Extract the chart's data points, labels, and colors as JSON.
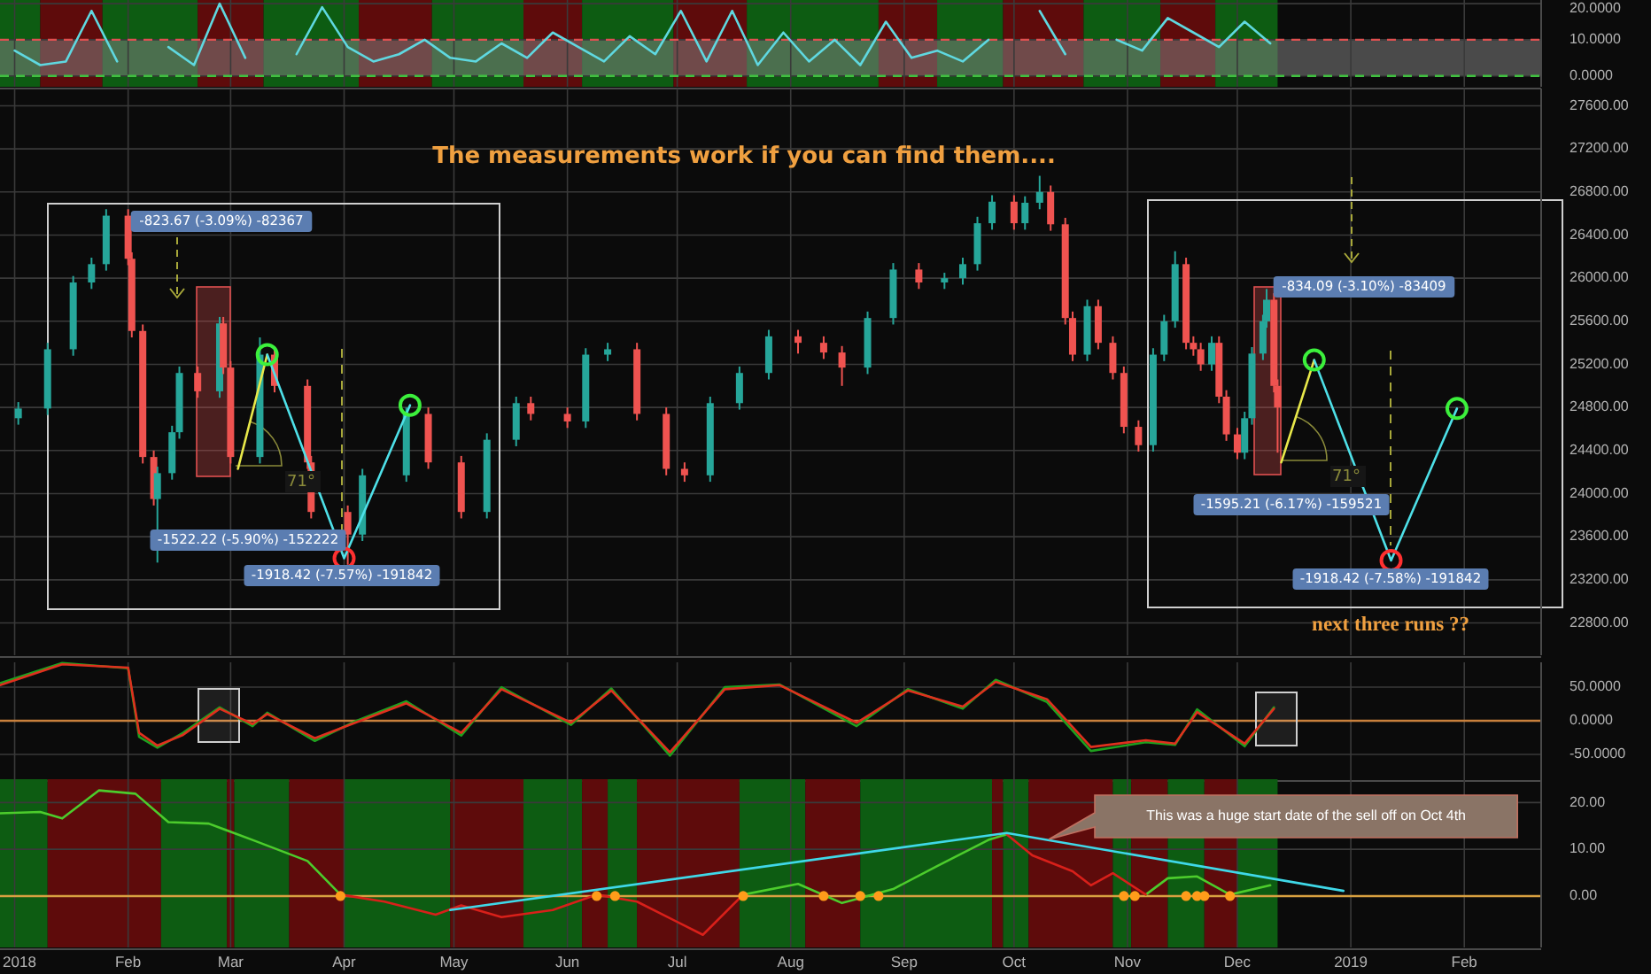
{
  "chart_data": [
    {
      "type": "line",
      "xlim": [
        "2017-12-28",
        "2019-02-22"
      ],
      "ylim": [
        -3,
        21
      ],
      "tick_labels": "y",
      "grid": true,
      "xticks": [
        {
          "value": "2018-01-01",
          "label": null
        },
        {
          "value": "2018-02-01",
          "label": null
        },
        {
          "value": "2018-03-01",
          "label": null
        },
        {
          "value": "2018-04-01",
          "label": null
        },
        {
          "value": "2018-05-01",
          "label": null
        },
        {
          "value": "2018-06-01",
          "label": null
        },
        {
          "value": "2018-07-01",
          "label": null
        },
        {
          "value": "2018-08-01",
          "label": null
        },
        {
          "value": "2018-09-01",
          "label": null
        },
        {
          "value": "2018-10-01",
          "label": null
        },
        {
          "value": "2018-11-01",
          "label": null
        },
        {
          "value": "2018-12-01",
          "label": null
        },
        {
          "value": "2019-01-01",
          "label": null
        },
        {
          "value": "2019-02-01",
          "label": null
        }
      ],
      "yticks": [
        {
          "value": 0,
          "label": "0.0000"
        },
        {
          "value": 10,
          "label": "10.0000"
        },
        {
          "value": 20,
          "label": "20.0000"
        }
      ],
      "bands": [
        {
          "axis": "x",
          "from": "2017-12-28",
          "to": "2018-01-08",
          "color": "#0d5c12"
        },
        {
          "axis": "x",
          "from": "2018-01-08",
          "to": "2018-01-25",
          "color": "#5e0b0b"
        },
        {
          "axis": "x",
          "from": "2018-01-25",
          "to": "2018-02-20",
          "color": "#0d5c12"
        },
        {
          "axis": "x",
          "from": "2018-02-20",
          "to": "2018-03-10",
          "color": "#5e0b0b"
        },
        {
          "axis": "x",
          "from": "2018-03-10",
          "to": "2018-04-05",
          "color": "#0d5c12"
        },
        {
          "axis": "x",
          "from": "2018-04-05",
          "to": "2018-04-25",
          "color": "#5e0b0b"
        },
        {
          "axis": "x",
          "from": "2018-04-25",
          "to": "2018-05-20",
          "color": "#0d5c12"
        },
        {
          "axis": "x",
          "from": "2018-05-20",
          "to": "2018-06-05",
          "color": "#5e0b0b"
        },
        {
          "axis": "x",
          "from": "2018-06-05",
          "to": "2018-06-30",
          "color": "#0d5c12"
        },
        {
          "axis": "x",
          "from": "2018-06-30",
          "to": "2018-07-20",
          "color": "#5e0b0b"
        },
        {
          "axis": "x",
          "from": "2018-07-20",
          "to": "2018-08-25",
          "color": "#0d5c12"
        },
        {
          "axis": "x",
          "from": "2018-08-25",
          "to": "2018-09-10",
          "color": "#5e0b0b"
        },
        {
          "axis": "x",
          "from": "2018-09-10",
          "to": "2018-09-28",
          "color": "#0d5c12"
        },
        {
          "axis": "x",
          "from": "2018-09-28",
          "to": "2018-10-20",
          "color": "#5e0b0b"
        },
        {
          "axis": "x",
          "from": "2018-10-20",
          "to": "2018-11-10",
          "color": "#0d5c12"
        },
        {
          "axis": "x",
          "from": "2018-11-10",
          "to": "2018-11-25",
          "color": "#5e0b0b"
        },
        {
          "axis": "x",
          "from": "2018-11-25",
          "to": "2018-12-12",
          "color": "#0d5c12"
        },
        {
          "axis": "y",
          "from": 0,
          "to": 10,
          "color": "#808080"
        }
      ],
      "ref_lines": [
        {
          "axis": "y",
          "value": 10,
          "color": "#e05050",
          "line_style": "dashed"
        },
        {
          "axis": "y",
          "value": 0,
          "color": "#40c040",
          "line_style": "dashed"
        }
      ],
      "series": [
        {
          "color": "#5fd8e0",
          "x": [
            "2018-01-01",
            "2018-01-08",
            "2018-01-15",
            "2018-01-22",
            "2018-01-29",
            "2018-02-05",
            "2018-02-12",
            "2018-02-19",
            "2018-02-26",
            "2018-03-05",
            "2018-03-12",
            "2018-03-19",
            "2018-03-26",
            "2018-04-02",
            "2018-04-09",
            "2018-04-16",
            "2018-04-23",
            "2018-04-30",
            "2018-05-07",
            "2018-05-14",
            "2018-05-21",
            "2018-05-28",
            "2018-06-04",
            "2018-06-11",
            "2018-06-18",
            "2018-06-25",
            "2018-07-02",
            "2018-07-09",
            "2018-07-16",
            "2018-07-23",
            "2018-07-30",
            "2018-08-06",
            "2018-08-13",
            "2018-08-20",
            "2018-08-27",
            "2018-09-03",
            "2018-09-10",
            "2018-09-17",
            "2018-09-24",
            "2018-10-01",
            "2018-10-08",
            "2018-10-15",
            "2018-10-22",
            "2018-10-29",
            "2018-11-05",
            "2018-11-12",
            "2018-11-19",
            "2018-11-26",
            "2018-12-03",
            "2018-12-10"
          ],
          "values": [
            7,
            3,
            4,
            18,
            4,
            null,
            8,
            3,
            20,
            5,
            null,
            6,
            19,
            8,
            4,
            6,
            10,
            5,
            4,
            9,
            5,
            12,
            8,
            4,
            11,
            6,
            18,
            4,
            18,
            3,
            12,
            4,
            10,
            3,
            15,
            5,
            7,
            4,
            10,
            null,
            18,
            6,
            null,
            10,
            7,
            16,
            12,
            8,
            15,
            9
          ]
        }
      ]
    },
    {
      "type": "candlestick",
      "title": "The measurements work if you can find them....",
      "xlim": [
        "2017-12-28",
        "2019-02-22"
      ],
      "ylim": [
        22500,
        27760
      ],
      "tick_labels": "y",
      "grid": true,
      "xticks": [
        {
          "value": "2018-01-01",
          "label": null
        },
        {
          "value": "2018-02-01",
          "label": null
        },
        {
          "value": "2018-03-01",
          "label": null
        },
        {
          "value": "2018-04-01",
          "label": null
        },
        {
          "value": "2018-05-01",
          "label": null
        },
        {
          "value": "2018-06-01",
          "label": null
        },
        {
          "value": "2018-07-01",
          "label": null
        },
        {
          "value": "2018-08-01",
          "label": null
        },
        {
          "value": "2018-09-01",
          "label": null
        },
        {
          "value": "2018-10-01",
          "label": null
        },
        {
          "value": "2018-11-01",
          "label": null
        },
        {
          "value": "2018-12-01",
          "label": null
        },
        {
          "value": "2019-01-01",
          "label": null
        },
        {
          "value": "2019-02-01",
          "label": null
        }
      ],
      "yticks": [
        {
          "value": 22800,
          "label": "22800.00"
        },
        {
          "value": 23200,
          "label": "23200.00"
        },
        {
          "value": 23600,
          "label": "23600.00"
        },
        {
          "value": 24000,
          "label": "24000.00"
        },
        {
          "value": 24400,
          "label": "24400.00"
        },
        {
          "value": 24800,
          "label": "24800.00"
        },
        {
          "value": 25200,
          "label": "25200.00"
        },
        {
          "value": 25600,
          "label": "25600.00"
        },
        {
          "value": 26000,
          "label": "26000.00"
        },
        {
          "value": 26400,
          "label": "26400.00"
        },
        {
          "value": 26800,
          "label": "26800.00"
        },
        {
          "value": 27200,
          "label": "27200.00"
        },
        {
          "value": 27600,
          "label": "27600.00"
        }
      ],
      "x": [
        "2018-01-02",
        "2018-01-10",
        "2018-01-17",
        "2018-01-22",
        "2018-01-26",
        "2018-02-01",
        "2018-02-02",
        "2018-02-05",
        "2018-02-08",
        "2018-02-09",
        "2018-02-13",
        "2018-02-15",
        "2018-02-20",
        "2018-02-26",
        "2018-02-27",
        "2018-03-01",
        "2018-03-09",
        "2018-03-13",
        "2018-03-22",
        "2018-03-23",
        "2018-04-02",
        "2018-04-06",
        "2018-04-18",
        "2018-04-24",
        "2018-05-03",
        "2018-05-10",
        "2018-05-18",
        "2018-05-22",
        "2018-06-01",
        "2018-06-06",
        "2018-06-12",
        "2018-06-20",
        "2018-06-28",
        "2018-07-03",
        "2018-07-10",
        "2018-07-18",
        "2018-07-26",
        "2018-08-03",
        "2018-08-10",
        "2018-08-15",
        "2018-08-22",
        "2018-08-29",
        "2018-09-05",
        "2018-09-12",
        "2018-09-17",
        "2018-09-21",
        "2018-09-25",
        "2018-10-01",
        "2018-10-04",
        "2018-10-08",
        "2018-10-11",
        "2018-10-15",
        "2018-10-17",
        "2018-10-21",
        "2018-10-24",
        "2018-10-28",
        "2018-10-31",
        "2018-11-04",
        "2018-11-08",
        "2018-11-11",
        "2018-11-14",
        "2018-11-17",
        "2018-11-19",
        "2018-11-21",
        "2018-11-24",
        "2018-11-26",
        "2018-11-28",
        "2018-12-01",
        "2018-12-03",
        "2018-12-05",
        "2018-12-08",
        "2018-12-09",
        "2018-12-11",
        "2018-12-12"
      ],
      "ohlc": [
        [
          24700,
          24850,
          24640,
          24790
        ],
        [
          24790,
          25400,
          24730,
          25340
        ],
        [
          25340,
          26020,
          25280,
          25960
        ],
        [
          25960,
          26190,
          25900,
          26130
        ],
        [
          26130,
          26640,
          26070,
          26580
        ],
        [
          26580,
          26640,
          26120,
          26180
        ],
        [
          26180,
          26240,
          25450,
          25510
        ],
        [
          25510,
          25570,
          24280,
          24340
        ],
        [
          24340,
          24400,
          23890,
          23950
        ],
        [
          23950,
          24250,
          23360,
          24190
        ],
        [
          24190,
          24630,
          24130,
          24570
        ],
        [
          24570,
          25180,
          24510,
          25120
        ],
        [
          25120,
          25180,
          24890,
          24950
        ],
        [
          24950,
          25640,
          24890,
          25580
        ],
        [
          25580,
          25640,
          25110,
          25170
        ],
        [
          25170,
          25230,
          24280,
          24340
        ],
        [
          24340,
          25450,
          24280,
          25290
        ],
        [
          25290,
          25350,
          24940,
          25000
        ],
        [
          25000,
          25060,
          24230,
          24290
        ],
        [
          24290,
          24350,
          23770,
          23830
        ],
        [
          23830,
          23890,
          23340,
          23620
        ],
        [
          23620,
          24230,
          23560,
          24170
        ],
        [
          24170,
          24800,
          24110,
          24740
        ],
        [
          24740,
          24800,
          24230,
          24290
        ],
        [
          24290,
          24350,
          23770,
          23830
        ],
        [
          23830,
          24560,
          23770,
          24500
        ],
        [
          24500,
          24900,
          24440,
          24840
        ],
        [
          24840,
          24900,
          24680,
          24740
        ],
        [
          24740,
          24800,
          24610,
          24670
        ],
        [
          24670,
          25350,
          24610,
          25290
        ],
        [
          25290,
          25400,
          25230,
          25340
        ],
        [
          25340,
          25400,
          24680,
          24740
        ],
        [
          24740,
          24800,
          24170,
          24230
        ],
        [
          24230,
          24290,
          24110,
          24170
        ],
        [
          24170,
          24900,
          24110,
          24840
        ],
        [
          24840,
          25180,
          24780,
          25120
        ],
        [
          25120,
          25520,
          25060,
          25460
        ],
        [
          25460,
          25520,
          25300,
          25400
        ],
        [
          25400,
          25460,
          25250,
          25310
        ],
        [
          25310,
          25370,
          25000,
          25170
        ],
        [
          25170,
          25690,
          25110,
          25630
        ],
        [
          25630,
          26140,
          25570,
          26080
        ],
        [
          26080,
          26140,
          25900,
          25960
        ],
        [
          25960,
          26050,
          25900,
          26000
        ],
        [
          26000,
          26190,
          25940,
          26130
        ],
        [
          26130,
          26570,
          26070,
          26510
        ],
        [
          26510,
          26770,
          26450,
          26710
        ],
        [
          26710,
          26770,
          26450,
          26510
        ],
        [
          26510,
          26760,
          26450,
          26700
        ],
        [
          26700,
          26950,
          26640,
          26800
        ],
        [
          26800,
          26860,
          26440,
          26500
        ],
        [
          26500,
          26560,
          25570,
          25630
        ],
        [
          25630,
          25690,
          25230,
          25290
        ],
        [
          25290,
          25800,
          25230,
          25740
        ],
        [
          25740,
          25800,
          25340,
          25400
        ],
        [
          25400,
          25460,
          25060,
          25120
        ],
        [
          25120,
          25180,
          24560,
          24620
        ],
        [
          24620,
          24680,
          24390,
          24450
        ],
        [
          24450,
          25350,
          24390,
          25290
        ],
        [
          25290,
          25660,
          25230,
          25600
        ],
        [
          25600,
          26250,
          25540,
          26130
        ],
        [
          26130,
          26190,
          25340,
          25400
        ],
        [
          25400,
          25460,
          25280,
          25340
        ],
        [
          25340,
          25400,
          25140,
          25200
        ],
        [
          25200,
          25460,
          25140,
          25400
        ],
        [
          25400,
          25460,
          24840,
          24900
        ],
        [
          24900,
          24960,
          24490,
          24550
        ],
        [
          24550,
          24610,
          24320,
          24380
        ],
        [
          24380,
          24760,
          24320,
          24700
        ],
        [
          24700,
          25360,
          24640,
          25300
        ],
        [
          25300,
          25660,
          25240,
          25600
        ],
        [
          25600,
          25900,
          25540,
          25800
        ],
        [
          25800,
          25860,
          24940,
          25000
        ],
        [
          25000,
          25060,
          24380,
          24800
        ]
      ],
      "series": [
        {
          "type": "line",
          "color": "#e8e84a",
          "x": [
            "2018-03-03",
            "2018-03-11"
          ],
          "values": [
            24230,
            25290
          ]
        },
        {
          "type": "line",
          "color": "#4ee0e8",
          "marker": "circle",
          "x": [
            "2018-03-11",
            "2018-04-01",
            "2018-04-19"
          ],
          "values": [
            25290,
            23400,
            24820
          ]
        },
        {
          "type": "line",
          "color": "#e8e84a",
          "x": [
            "2018-12-13",
            "2018-12-22"
          ],
          "values": [
            24290,
            25240
          ]
        },
        {
          "type": "line",
          "color": "#4ee0e8",
          "marker": "circle",
          "x": [
            "2018-12-22",
            "2019-01-12",
            "2019-01-30"
          ],
          "values": [
            25240,
            23380,
            24790
          ]
        }
      ],
      "annotations": [
        "-823.67 (-3.09%) -82367",
        "-1522.22 (-5.90%) -152222",
        "-1918.42 (-7.57%) -191842",
        "-834.09 (-3.10%) -83409",
        "-1595.21 (-6.17%) -159521",
        "-1918.42 (-7.58%) -191842",
        "71°",
        "71°",
        "next three runs ??"
      ]
    },
    {
      "type": "line",
      "xlim": [
        "2017-12-28",
        "2019-02-22"
      ],
      "ylim": [
        -87,
        87
      ],
      "tick_labels": "y",
      "grid": true,
      "xticks": [
        {
          "value": "2018-01-01",
          "label": null
        },
        {
          "value": "2018-02-01",
          "label": null
        },
        {
          "value": "2018-03-01",
          "label": null
        },
        {
          "value": "2018-04-01",
          "label": null
        },
        {
          "value": "2018-05-01",
          "label": null
        },
        {
          "value": "2018-06-01",
          "label": null
        },
        {
          "value": "2018-07-01",
          "label": null
        },
        {
          "value": "2018-08-01",
          "label": null
        },
        {
          "value": "2018-09-01",
          "label": null
        },
        {
          "value": "2018-10-01",
          "label": null
        },
        {
          "value": "2018-11-01",
          "label": null
        },
        {
          "value": "2018-12-01",
          "label": null
        },
        {
          "value": "2019-01-01",
          "label": null
        },
        {
          "value": "2019-02-01",
          "label": null
        }
      ],
      "yticks": [
        {
          "value": -50,
          "label": "-50.0000"
        },
        {
          "value": 0,
          "label": "0.0000"
        },
        {
          "value": 50,
          "label": "50.0000"
        }
      ],
      "ref_lines": [
        {
          "axis": "y",
          "value": 0,
          "color": "#c8803c"
        }
      ],
      "x": [
        "2017-12-28",
        "2018-01-14",
        "2018-02-01",
        "2018-02-04",
        "2018-02-09",
        "2018-02-16",
        "2018-02-26",
        "2018-03-07",
        "2018-03-11",
        "2018-03-24",
        "2018-04-04",
        "2018-04-18",
        "2018-05-03",
        "2018-05-14",
        "2018-06-02",
        "2018-06-13",
        "2018-06-29",
        "2018-07-14",
        "2018-07-29",
        "2018-08-19",
        "2018-09-02",
        "2018-09-17",
        "2018-09-26",
        "2018-10-10",
        "2018-10-22",
        "2018-11-06",
        "2018-11-14",
        "2018-11-20",
        "2018-12-03",
        "2018-12-11"
      ],
      "series": [
        {
          "color": "#1fa01f",
          "values": [
            56,
            86,
            78,
            -24,
            -40,
            -18,
            20,
            -8,
            12,
            -30,
            -1,
            29,
            -22,
            50,
            -6,
            48,
            -52,
            50,
            54,
            -8,
            47,
            18,
            61,
            28,
            -45,
            -32,
            -36,
            17,
            -38,
            20
          ]
        },
        {
          "color": "#e0301e",
          "values": [
            53,
            84,
            79,
            -18,
            -37,
            -21,
            18,
            -5,
            10,
            -26,
            -3,
            26,
            -18,
            47,
            -3,
            45,
            -47,
            47,
            53,
            -3,
            45,
            21,
            58,
            32,
            -39,
            -29,
            -34,
            13,
            -34,
            18
          ]
        }
      ]
    },
    {
      "type": "line",
      "xlim": [
        "2017-12-28",
        "2019-02-22"
      ],
      "ylim": [
        -11,
        25
      ],
      "grid": true,
      "xticks": [
        {
          "value": "2018-01-01",
          "label": "2018"
        },
        {
          "value": "2018-02-01",
          "label": "Feb"
        },
        {
          "value": "2018-03-01",
          "label": "Mar"
        },
        {
          "value": "2018-04-01",
          "label": "Apr"
        },
        {
          "value": "2018-05-01",
          "label": "May"
        },
        {
          "value": "2018-06-01",
          "label": "Jun"
        },
        {
          "value": "2018-07-01",
          "label": "Jul"
        },
        {
          "value": "2018-08-01",
          "label": "Aug"
        },
        {
          "value": "2018-09-01",
          "label": "Sep"
        },
        {
          "value": "2018-10-01",
          "label": "Oct"
        },
        {
          "value": "2018-11-01",
          "label": "Nov"
        },
        {
          "value": "2018-12-01",
          "label": "Dec"
        },
        {
          "value": "2019-01-01",
          "label": "2019"
        },
        {
          "value": "2019-02-01",
          "label": "Feb"
        }
      ],
      "yticks": [
        {
          "value": 0,
          "label": "0.00"
        },
        {
          "value": 10,
          "label": "10.00"
        },
        {
          "value": 20,
          "label": "20.00"
        }
      ],
      "bands": [
        {
          "axis": "x",
          "from": "2017-12-28",
          "to": "2018-01-10",
          "color": "#0d5c12"
        },
        {
          "axis": "x",
          "from": "2018-01-10",
          "to": "2018-02-10",
          "color": "#5e0b0b"
        },
        {
          "axis": "x",
          "from": "2018-02-10",
          "to": "2018-02-28",
          "color": "#0d5c12"
        },
        {
          "axis": "x",
          "from": "2018-02-28",
          "to": "2018-03-02",
          "color": "#5e0b0b"
        },
        {
          "axis": "x",
          "from": "2018-03-02",
          "to": "2018-03-17",
          "color": "#0d5c12"
        },
        {
          "axis": "x",
          "from": "2018-03-17",
          "to": "2018-04-01",
          "color": "#5e0b0b"
        },
        {
          "axis": "x",
          "from": "2018-04-01",
          "to": "2018-04-30",
          "color": "#0d5c12"
        },
        {
          "axis": "x",
          "from": "2018-04-30",
          "to": "2018-05-20",
          "color": "#5e0b0b"
        },
        {
          "axis": "x",
          "from": "2018-05-20",
          "to": "2018-06-05",
          "color": "#0d5c12"
        },
        {
          "axis": "x",
          "from": "2018-06-05",
          "to": "2018-06-12",
          "color": "#5e0b0b"
        },
        {
          "axis": "x",
          "from": "2018-06-12",
          "to": "2018-06-20",
          "color": "#0d5c12"
        },
        {
          "axis": "x",
          "from": "2018-06-20",
          "to": "2018-07-18",
          "color": "#5e0b0b"
        },
        {
          "axis": "x",
          "from": "2018-07-18",
          "to": "2018-08-05",
          "color": "#0d5c12"
        },
        {
          "axis": "x",
          "from": "2018-08-05",
          "to": "2018-08-20",
          "color": "#5e0b0b"
        },
        {
          "axis": "x",
          "from": "2018-08-20",
          "to": "2018-09-25",
          "color": "#0d5c12"
        },
        {
          "axis": "x",
          "from": "2018-09-25",
          "to": "2018-09-28",
          "color": "#5e0b0b"
        },
        {
          "axis": "x",
          "from": "2018-09-28",
          "to": "2018-10-05",
          "color": "#0d5c12"
        },
        {
          "axis": "x",
          "from": "2018-10-05",
          "to": "2018-10-28",
          "color": "#5e0b0b"
        },
        {
          "axis": "x",
          "from": "2018-10-28",
          "to": "2018-11-02",
          "color": "#0d5c12"
        },
        {
          "axis": "x",
          "from": "2018-11-02",
          "to": "2018-11-12",
          "color": "#5e0b0b"
        },
        {
          "axis": "x",
          "from": "2018-11-12",
          "to": "2018-11-22",
          "color": "#0d5c12"
        },
        {
          "axis": "x",
          "from": "2018-11-22",
          "to": "2018-12-01",
          "color": "#5e0b0b"
        },
        {
          "axis": "x",
          "from": "2018-12-01",
          "to": "2018-12-12",
          "color": "#0d5c12"
        }
      ],
      "ref_lines": [
        {
          "axis": "y",
          "value": 0,
          "color": "#d8a040"
        }
      ],
      "series": [
        {
          "color": "#4ccc2c",
          "x": [
            "2017-12-28",
            "2018-01-08",
            "2018-01-14",
            "2018-01-24",
            "2018-02-03",
            "2018-02-12",
            "2018-02-23",
            "2018-03-07",
            "2018-03-22",
            "2018-03-31",
            "2018-05-01",
            "2018-07-19",
            "2018-08-03",
            "2018-08-15",
            "2018-08-29",
            "2018-09-10",
            "2018-09-24",
            "2018-09-29",
            "2018-10-15",
            "2018-11-06",
            "2018-11-12",
            "2018-11-20",
            "2018-11-29",
            "2018-12-10"
          ],
          "values": [
            17.7,
            18,
            16.6,
            22.6,
            21.9,
            15.8,
            15.5,
            12,
            7.5,
            0.3,
            null,
            0.3,
            2.6,
            -1.5,
            1.5,
            6.4,
            12,
            13.2,
            null,
            0.3,
            3.8,
            4.2,
            0.3,
            2.3
          ]
        },
        {
          "color": "#d8201a",
          "x": [
            "2018-03-31",
            "2018-04-12",
            "2018-04-26",
            "2018-05-03",
            "2018-05-14",
            "2018-05-28",
            "2018-06-09",
            "2018-06-20",
            "2018-07-08",
            "2018-07-19"
          ],
          "values": [
            0.3,
            -1.2,
            -4,
            -2,
            -4.5,
            -3,
            0.3,
            -1.2,
            -8.3,
            0.3
          ]
        },
        {
          "color": "#d8201a",
          "x": [
            "2018-09-29",
            "2018-10-06",
            "2018-10-17",
            "2018-10-22",
            "2018-10-28",
            "2018-11-06"
          ],
          "values": [
            13.2,
            8.7,
            5.3,
            2.3,
            4.9,
            0.3
          ]
        },
        {
          "type": "scatter",
          "marker": "circle",
          "color": "#ff9c1a",
          "x": [
            "2018-03-31",
            "2018-06-09",
            "2018-06-14",
            "2018-07-19",
            "2018-08-10",
            "2018-08-20",
            "2018-08-25",
            "2018-10-31",
            "2018-11-03",
            "2018-11-17",
            "2018-11-20",
            "2018-11-22",
            "2018-11-29"
          ],
          "values": [
            0,
            0,
            0,
            0,
            0,
            0,
            0,
            0,
            0,
            0,
            0,
            0,
            0
          ]
        },
        {
          "color": "#3fd8e8",
          "x": [
            "2018-04-30",
            "2018-09-29",
            "2018-12-30"
          ],
          "values": [
            -3,
            13.5,
            1.1
          ]
        }
      ],
      "annotations": [
        "This was a huge start date of the sell off on Oct 4th"
      ]
    }
  ]
}
